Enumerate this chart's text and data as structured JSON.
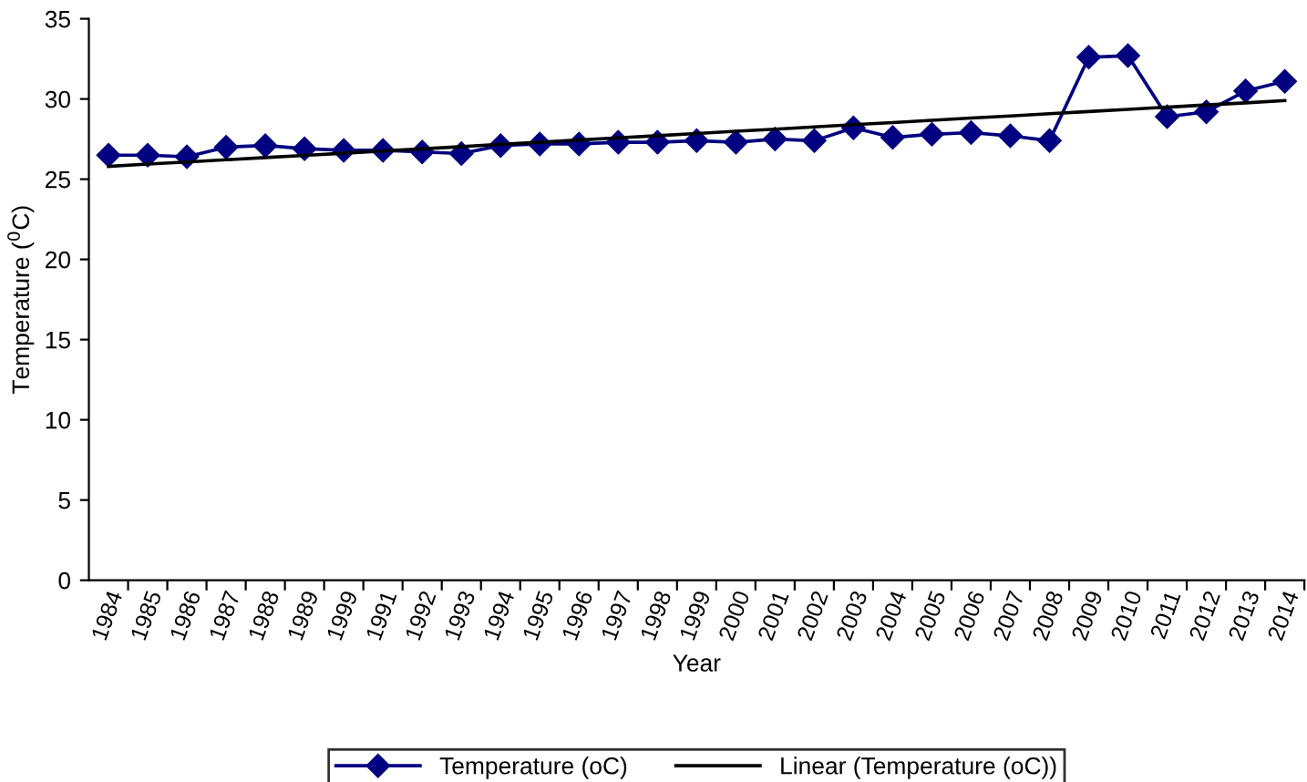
{
  "chart_data": {
    "type": "line",
    "xlabel": "Year",
    "ylabel": "Temperature ($^{0}$C)",
    "categories": [
      "1984",
      "1985",
      "1986",
      "1987",
      "1988",
      "1989",
      "1999",
      "1991",
      "1992",
      "1993",
      "1994",
      "1995",
      "1996",
      "1997",
      "1998",
      "1999",
      "2000",
      "2001",
      "2002",
      "2003",
      "2004",
      "2005",
      "2006",
      "2007",
      "2008",
      "2009",
      "2010",
      "2011",
      "2012",
      "2013",
      "2014"
    ],
    "series": [
      {
        "name": "Temperature (oC)",
        "color": "#000080",
        "marker": "diamond",
        "values": [
          26.5,
          26.5,
          26.4,
          27.0,
          27.1,
          26.9,
          26.8,
          26.8,
          26.7,
          26.6,
          27.1,
          27.2,
          27.2,
          27.3,
          27.3,
          27.4,
          27.3,
          27.5,
          27.4,
          28.2,
          27.6,
          27.8,
          27.9,
          27.7,
          27.4,
          32.6,
          32.7,
          28.9,
          29.2,
          30.5,
          31.1
        ]
      },
      {
        "name": "Linear (Temperature (oC))",
        "color": "#000000",
        "marker": "none",
        "values": [
          25.8,
          25.94,
          26.07,
          26.21,
          26.35,
          26.48,
          26.62,
          26.76,
          26.89,
          27.03,
          27.17,
          27.3,
          27.44,
          27.58,
          27.71,
          27.85,
          27.99,
          28.12,
          28.26,
          28.4,
          28.53,
          28.67,
          28.81,
          28.94,
          29.08,
          29.22,
          29.35,
          29.49,
          29.63,
          29.76,
          29.9
        ]
      }
    ],
    "ylim": [
      0,
      35
    ],
    "yticks": [
      0,
      5,
      10,
      15,
      20,
      25,
      30,
      35
    ],
    "grid": false,
    "legend": "bottom"
  }
}
